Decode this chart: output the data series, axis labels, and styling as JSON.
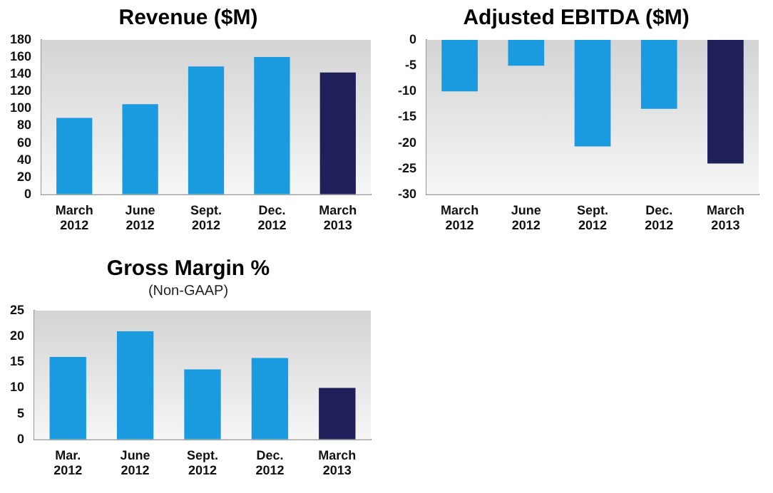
{
  "chart_data": [
    {
      "type": "bar",
      "title": "Revenue ($M)",
      "categories": [
        "March 2012",
        "June 2012",
        "Sept. 2012",
        "Dec. 2012",
        "March 2013"
      ],
      "values": [
        89,
        105,
        149,
        160,
        142
      ],
      "colors": [
        "#1a9be0",
        "#1a9be0",
        "#1a9be0",
        "#1a9be0",
        "#1f1f5a"
      ],
      "ylim": [
        0,
        180
      ],
      "yticks": [
        0,
        20,
        40,
        60,
        80,
        100,
        120,
        140,
        160,
        180
      ],
      "grid": false,
      "legend": false
    },
    {
      "type": "bar",
      "title": "Adjusted EBITDA ($M)",
      "categories": [
        "March 2012",
        "June 2012",
        "Sept. 2012",
        "Dec. 2012",
        "March 2013"
      ],
      "values": [
        -10,
        -5,
        -20.7,
        -13.4,
        -24
      ],
      "colors": [
        "#1a9be0",
        "#1a9be0",
        "#1a9be0",
        "#1a9be0",
        "#1f1f5a"
      ],
      "ylim": [
        -30,
        0
      ],
      "yticks": [
        -30,
        -25,
        -20,
        -15,
        -10,
        -5,
        0
      ],
      "grid": false,
      "legend": false
    },
    {
      "type": "bar",
      "title": "Gross Margin %",
      "subtitle": "(Non-GAAP)",
      "categories": [
        "Mar. 2012",
        "June 2012",
        "Sept. 2012",
        "Dec. 2012",
        "March 2013"
      ],
      "values": [
        16,
        21,
        13.6,
        15.8,
        10
      ],
      "colors": [
        "#1a9be0",
        "#1a9be0",
        "#1a9be0",
        "#1a9be0",
        "#1f1f5a"
      ],
      "ylim": [
        0,
        25
      ],
      "yticks": [
        0,
        5,
        10,
        15,
        20,
        25
      ],
      "grid": false,
      "legend": false
    }
  ]
}
